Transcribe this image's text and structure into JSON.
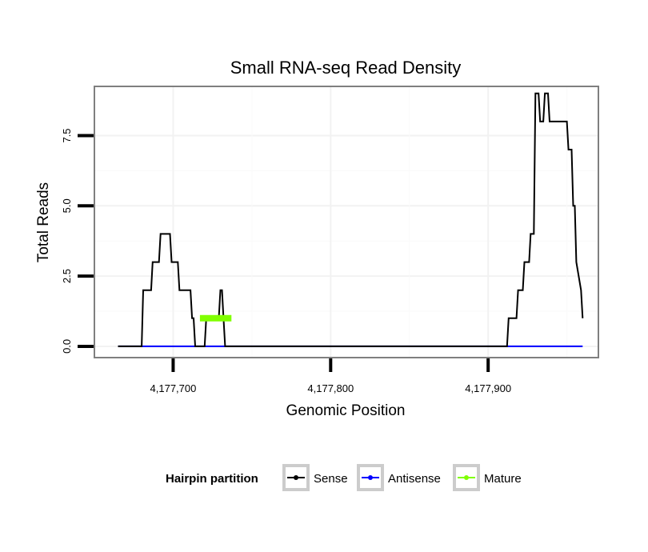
{
  "chart_data": {
    "type": "line",
    "title": "Small RNA-seq Read Density",
    "xlabel": "Genomic Position",
    "ylabel": "Total Reads",
    "xlim": [
      4177650,
      4177970
    ],
    "ylim": [
      -0.4,
      9.25
    ],
    "grid": true,
    "x_ticks": [
      {
        "value": 4177700,
        "label": "4,177,700"
      },
      {
        "value": 4177800,
        "label": "4,177,800"
      },
      {
        "value": 4177900,
        "label": "4,177,900"
      }
    ],
    "y_ticks": [
      {
        "value": 0,
        "label": "0.0"
      },
      {
        "value": 2.5,
        "label": "2.5"
      },
      {
        "value": 5,
        "label": "5.0"
      },
      {
        "value": 7.5,
        "label": "7.5"
      }
    ],
    "legend": {
      "title": "Hairpin partition",
      "position": "bottom",
      "entries": [
        {
          "label": "Sense",
          "color": "#000000"
        },
        {
          "label": "Antisense",
          "color": "#0000ff"
        },
        {
          "label": "Mature",
          "color": "#80ff00"
        }
      ]
    },
    "series": [
      {
        "name": "Sense",
        "color": "#000000",
        "x": [
          4177665,
          4177680,
          4177681,
          4177686,
          4177687,
          4177691,
          4177692,
          4177698,
          4177699,
          4177703,
          4177704,
          4177711,
          4177712,
          4177713,
          4177714,
          4177720,
          4177721,
          4177729,
          4177730,
          4177731,
          4177732,
          4177733,
          4177738,
          4177912,
          4177913,
          4177918,
          4177919,
          4177922,
          4177923,
          4177926,
          4177927,
          4177929,
          4177930,
          4177932,
          4177933,
          4177935,
          4177936,
          4177938,
          4177939,
          4177940,
          4177941,
          4177944,
          4177945,
          4177950,
          4177951,
          4177953,
          4177954,
          4177955,
          4177956,
          4177959,
          4177960
        ],
        "y": [
          0,
          0,
          2,
          2,
          3,
          3,
          4,
          4,
          3,
          3,
          2,
          2,
          1,
          1,
          0,
          0,
          1,
          1,
          2,
          2,
          1,
          0,
          0,
          0,
          1,
          1,
          2,
          2,
          3,
          3,
          4,
          4,
          9,
          9,
          8,
          8,
          9,
          9,
          8,
          8,
          8,
          8,
          8,
          8,
          7,
          7,
          5,
          5,
          3,
          2,
          1
        ]
      },
      {
        "name": "Antisense",
        "color": "#0000ff",
        "x": [
          4177665,
          4177960
        ],
        "y": [
          0,
          0
        ]
      },
      {
        "name": "Mature",
        "color": "#80ff00",
        "x": [
          4177717,
          4177737
        ],
        "y": [
          1,
          1
        ]
      }
    ]
  }
}
